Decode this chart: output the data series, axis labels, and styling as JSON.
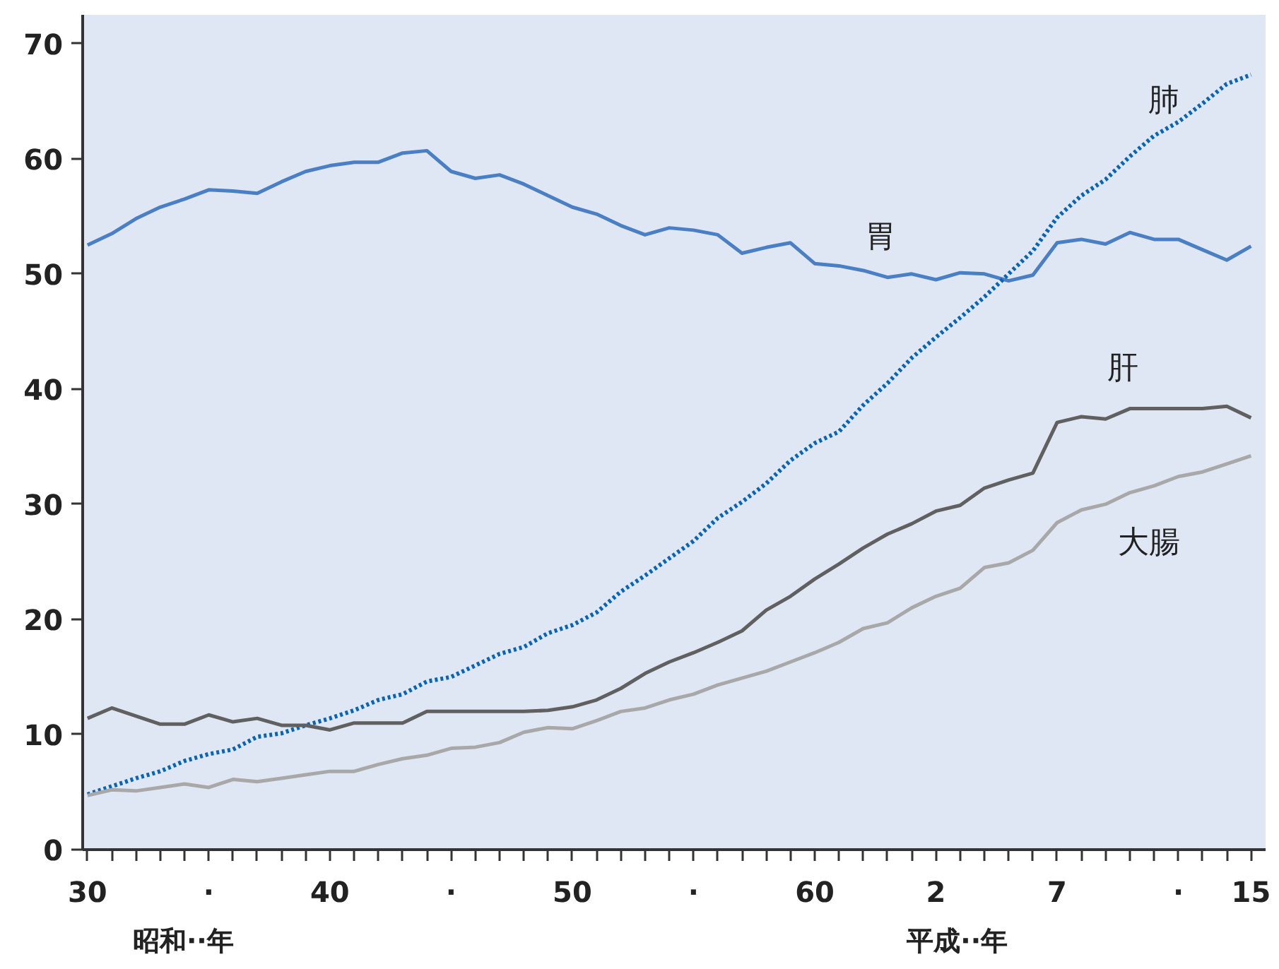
{
  "chart_data": {
    "type": "line",
    "categories": [
      "30",
      null,
      null,
      null,
      null,
      "·",
      null,
      null,
      null,
      null,
      "40",
      null,
      null,
      null,
      null,
      "·",
      null,
      null,
      null,
      null,
      "50",
      null,
      null,
      null,
      null,
      "·",
      null,
      null,
      null,
      null,
      "60",
      null,
      null,
      null,
      null,
      "2",
      null,
      null,
      null,
      null,
      "7",
      null,
      null,
      null,
      null,
      "·",
      null,
      null,
      "15"
    ],
    "series": [
      {
        "name": "胃",
        "color": "#4a7fc4",
        "line_style": "solid",
        "values": [
          52.5,
          53.5,
          54.8,
          55.8,
          56.5,
          57.3,
          57.2,
          57.0,
          58.0,
          58.9,
          59.4,
          59.7,
          59.7,
          60.5,
          60.7,
          58.9,
          58.3,
          58.6,
          57.8,
          56.8,
          55.8,
          55.2,
          54.2,
          53.4,
          54.0,
          53.8,
          53.4,
          51.8,
          52.3,
          52.7,
          50.9,
          50.7,
          50.3,
          49.7,
          50.0,
          49.5,
          50.1,
          50.0,
          49.4,
          49.9,
          52.7,
          53.0,
          52.6,
          53.6,
          53.0,
          53.0,
          52.1,
          51.2,
          52.4
        ]
      },
      {
        "name": "肺",
        "color": "#0a64b4",
        "line_style": "dotted",
        "values": [
          4.8,
          5.5,
          6.2,
          6.8,
          7.7,
          8.3,
          8.7,
          9.8,
          10.1,
          10.8,
          11.4,
          12.1,
          13.0,
          13.5,
          14.6,
          15.0,
          16.0,
          17.0,
          17.6,
          18.8,
          19.5,
          20.6,
          22.4,
          23.8,
          25.3,
          26.8,
          28.8,
          30.2,
          31.8,
          33.8,
          35.3,
          36.3,
          38.6,
          40.5,
          42.7,
          44.5,
          46.2,
          48.0,
          50.0,
          52.0,
          54.9,
          56.8,
          58.2,
          60.2,
          62.0,
          63.2,
          64.8,
          66.5,
          67.3
        ]
      },
      {
        "name": "肝",
        "color": "#606060",
        "line_style": "solid",
        "values": [
          11.4,
          12.3,
          11.6,
          10.9,
          10.9,
          11.7,
          11.1,
          11.4,
          10.8,
          10.8,
          10.4,
          11.0,
          11.0,
          11.0,
          12.0,
          12.0,
          12.0,
          12.0,
          12.0,
          12.1,
          12.4,
          13.0,
          14.0,
          15.3,
          16.3,
          17.1,
          18.0,
          19.0,
          20.8,
          22.0,
          23.5,
          24.8,
          26.2,
          27.4,
          28.3,
          29.4,
          29.9,
          31.4,
          32.1,
          32.7,
          37.1,
          37.6,
          37.4,
          38.3,
          38.3,
          38.3,
          38.3,
          38.5,
          37.5
        ]
      },
      {
        "name": "大腸",
        "color": "#a8a8a8",
        "line_style": "solid",
        "values": [
          4.7,
          5.2,
          5.1,
          5.4,
          5.7,
          5.4,
          6.1,
          5.9,
          6.2,
          6.5,
          6.8,
          6.8,
          7.4,
          7.9,
          8.2,
          8.8,
          8.9,
          9.3,
          10.2,
          10.6,
          10.5,
          11.2,
          12.0,
          12.3,
          13.0,
          13.5,
          14.3,
          14.9,
          15.5,
          16.3,
          17.1,
          18.0,
          19.2,
          19.7,
          21.0,
          22.0,
          22.7,
          24.5,
          24.9,
          26.0,
          28.4,
          29.5,
          30.0,
          31.0,
          31.6,
          32.4,
          32.8,
          33.5,
          34.2
        ]
      }
    ],
    "ylim": [
      0,
      72.5
    ],
    "yticks": [
      0,
      10,
      20,
      30,
      40,
      50,
      60,
      70
    ],
    "grid": false,
    "legend": false,
    "marker": "none",
    "annotations": [
      "昭和··年",
      "平成··年"
    ]
  }
}
